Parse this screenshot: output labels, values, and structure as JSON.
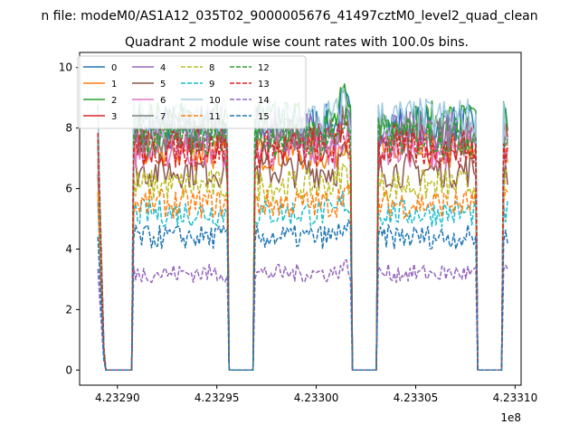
{
  "figure": {
    "suptitle": "n file: modeM0/AS1A12_035T02_9000005676_41497cztM0_level2_quad_clean",
    "title": "Quadrant 2 module wise count rates with 100.0s bins."
  },
  "chart_data": {
    "type": "line",
    "title": "Quadrant 2 module wise count rates with 100.0s bins.",
    "xlabel": "",
    "ylabel": "",
    "x_offset_label": "1e8",
    "xlim": [
      423288100.0,
      423310300.0
    ],
    "ylim": [
      -0.5,
      10.5
    ],
    "xticks": [
      423290000.0,
      423295000.0,
      423300000.0,
      423305000.0,
      423310000.0
    ],
    "xtick_labels": [
      "4.23290",
      "4.23295",
      "4.23300",
      "4.23305",
      "4.23310"
    ],
    "yticks": [
      0,
      2,
      4,
      6,
      8,
      10
    ],
    "ytick_labels": [
      "0",
      "2",
      "4",
      "6",
      "8",
      "10"
    ],
    "grid": false,
    "legend": {
      "placement": "top-left",
      "columns": 4
    },
    "active_intervals": [
      [
        423289020.0,
        423289350.0
      ],
      [
        423290750.0,
        423295580.0
      ],
      [
        423296900.0,
        423301770.0
      ],
      [
        423303110.0,
        423308060.0
      ],
      [
        423309370.0,
        423309700.0
      ]
    ],
    "series": [
      {
        "name": "0",
        "level": 8.1,
        "style": "solid",
        "color": "#1f77b4"
      },
      {
        "name": "1",
        "level": 7.2,
        "style": "solid",
        "color": "#ff7f0e"
      },
      {
        "name": "2",
        "level": 8.2,
        "style": "solid",
        "color": "#2ca02c"
      },
      {
        "name": "3",
        "level": 7.5,
        "style": "solid",
        "color": "#d62728"
      },
      {
        "name": "4",
        "level": 7.9,
        "style": "solid",
        "color": "#9467bd"
      },
      {
        "name": "5",
        "level": 6.6,
        "style": "solid",
        "color": "#8c564b"
      },
      {
        "name": "6",
        "level": 7.3,
        "style": "solid",
        "color": "#e377c2"
      },
      {
        "name": "7",
        "level": 7.8,
        "style": "solid",
        "color": "#7f7f7f"
      },
      {
        "name": "8",
        "level": 6.1,
        "style": "dashed",
        "color": "#bcbd22"
      },
      {
        "name": "9",
        "level": 5.2,
        "style": "dashed",
        "color": "#17becf"
      },
      {
        "name": "10",
        "level": 8.3,
        "style": "solid",
        "color": "#9ec9e2"
      },
      {
        "name": "11",
        "level": 5.5,
        "style": "dashed",
        "color": "#ff7f0e"
      },
      {
        "name": "12",
        "level": 7.7,
        "style": "dashed",
        "color": "#2ca02c"
      },
      {
        "name": "13",
        "level": 7.3,
        "style": "dashed",
        "color": "#d62728"
      },
      {
        "name": "14",
        "level": 3.2,
        "style": "dashed",
        "color": "#9467bd"
      },
      {
        "name": "15",
        "level": 4.4,
        "style": "dashed",
        "color": "#1f77b4"
      }
    ]
  }
}
